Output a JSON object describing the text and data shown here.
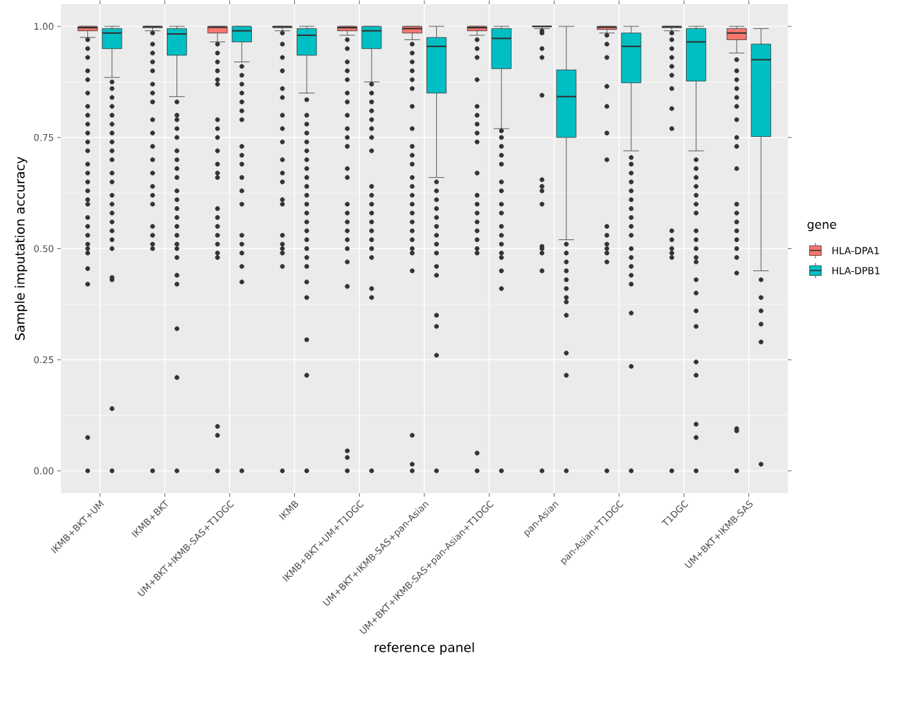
{
  "chart_data": {
    "type": "box",
    "xlabel": "reference panel",
    "ylabel": "Sample imputation accuracy",
    "legend_title": "gene",
    "categories": [
      "IKMB+BKT+UM",
      "IKMB+BKT",
      "UM+BKT+IKMB-SAS+T1DGC",
      "IKMB",
      "IKMB+BKT+UM+T1DGC",
      "UM+BKT+IKMB-SAS+pan-Asian",
      "UM+BKT+IKMB-SAS+pan-Asian+T1DGC",
      "pan-Asian",
      "pan-Asian+T1DGC",
      "T1DGC",
      "UM+BKT+IKMB-SAS"
    ],
    "ylim": [
      -0.05,
      1.05
    ],
    "yticks": [
      {
        "value": 0,
        "label": "0.00"
      },
      {
        "value": 0.25,
        "label": "0.25"
      },
      {
        "value": 0.5,
        "label": "0.50"
      },
      {
        "value": 0.75,
        "label": "0.75"
      },
      {
        "value": 1,
        "label": "1.00"
      }
    ],
    "grid": true,
    "legend": "right",
    "marker": "circle",
    "series": [
      {
        "name": "HLA-DPA1",
        "color": "#f8766d",
        "boxes": [
          {
            "low": 0.975,
            "q1": 0.99,
            "median": 0.997,
            "q3": 1.0,
            "high": 1.0,
            "outliers": [
              0.97,
              0.95,
              0.93,
              0.9,
              0.88,
              0.85,
              0.82,
              0.8,
              0.78,
              0.76,
              0.74,
              0.72,
              0.69,
              0.67,
              0.65,
              0.63,
              0.61,
              0.6,
              0.57,
              0.55,
              0.53,
              0.51,
              0.5,
              0.49,
              0.455,
              0.42,
              0.075,
              0.0
            ]
          },
          {
            "low": 0.99,
            "q1": 0.997,
            "median": 0.999,
            "q3": 1.0,
            "high": 1.0,
            "outliers": [
              0.985,
              0.96,
              0.94,
              0.92,
              0.9,
              0.87,
              0.85,
              0.83,
              0.79,
              0.76,
              0.73,
              0.7,
              0.67,
              0.64,
              0.62,
              0.6,
              0.55,
              0.53,
              0.51,
              0.5,
              0.0
            ]
          },
          {
            "low": 0.965,
            "q1": 0.985,
            "median": 0.998,
            "q3": 1.0,
            "high": 1.0,
            "outliers": [
              0.96,
              0.94,
              0.92,
              0.9,
              0.88,
              0.87,
              0.79,
              0.77,
              0.75,
              0.72,
              0.69,
              0.67,
              0.66,
              0.59,
              0.57,
              0.55,
              0.53,
              0.51,
              0.49,
              0.48,
              0.1,
              0.08,
              0.0
            ]
          },
          {
            "low": 0.99,
            "q1": 0.997,
            "median": 0.999,
            "q3": 1.0,
            "high": 1.0,
            "outliers": [
              0.985,
              0.96,
              0.93,
              0.9,
              0.86,
              0.84,
              0.8,
              0.77,
              0.74,
              0.7,
              0.67,
              0.65,
              0.61,
              0.6,
              0.53,
              0.51,
              0.5,
              0.49,
              0.46,
              0.0
            ]
          },
          {
            "low": 0.98,
            "q1": 0.99,
            "median": 0.997,
            "q3": 1.0,
            "high": 1.0,
            "outliers": [
              0.97,
              0.95,
              0.92,
              0.9,
              0.88,
              0.85,
              0.83,
              0.8,
              0.77,
              0.75,
              0.73,
              0.68,
              0.66,
              0.6,
              0.58,
              0.56,
              0.54,
              0.52,
              0.5,
              0.47,
              0.415,
              0.045,
              0.03,
              0.0
            ]
          },
          {
            "low": 0.97,
            "q1": 0.985,
            "median": 0.995,
            "q3": 1.0,
            "high": 1.0,
            "outliers": [
              0.96,
              0.94,
              0.92,
              0.9,
              0.88,
              0.86,
              0.82,
              0.77,
              0.73,
              0.71,
              0.69,
              0.66,
              0.64,
              0.62,
              0.6,
              0.58,
              0.56,
              0.54,
              0.52,
              0.5,
              0.49,
              0.45,
              0.08,
              0.015,
              0.0
            ]
          },
          {
            "low": 0.98,
            "q1": 0.99,
            "median": 0.997,
            "q3": 1.0,
            "high": 1.0,
            "outliers": [
              0.97,
              0.95,
              0.93,
              0.88,
              0.82,
              0.8,
              0.78,
              0.76,
              0.74,
              0.67,
              0.62,
              0.6,
              0.58,
              0.56,
              0.54,
              0.52,
              0.5,
              0.49,
              0.04,
              0.0
            ]
          },
          {
            "low": 0.995,
            "q1": 0.999,
            "median": 1.0,
            "q3": 1.0,
            "high": 1.0,
            "outliers": [
              0.99,
              0.985,
              0.95,
              0.93,
              0.845,
              0.655,
              0.64,
              0.63,
              0.6,
              0.505,
              0.5,
              0.49,
              0.45,
              0.0
            ]
          },
          {
            "low": 0.985,
            "q1": 0.993,
            "median": 0.998,
            "q3": 1.0,
            "high": 1.0,
            "outliers": [
              0.98,
              0.96,
              0.93,
              0.865,
              0.82,
              0.76,
              0.7,
              0.55,
              0.53,
              0.51,
              0.5,
              0.49,
              0.47,
              0.0
            ]
          },
          {
            "low": 0.99,
            "q1": 0.997,
            "median": 0.999,
            "q3": 1.0,
            "high": 1.0,
            "outliers": [
              0.985,
              0.97,
              0.95,
              0.93,
              0.91,
              0.89,
              0.86,
              0.815,
              0.77,
              0.54,
              0.52,
              0.5,
              0.49,
              0.48,
              0.0
            ]
          },
          {
            "low": 0.94,
            "q1": 0.97,
            "median": 0.985,
            "q3": 0.995,
            "high": 1.0,
            "outliers": [
              0.925,
              0.9,
              0.88,
              0.86,
              0.84,
              0.82,
              0.79,
              0.75,
              0.73,
              0.68,
              0.6,
              0.58,
              0.56,
              0.54,
              0.52,
              0.5,
              0.48,
              0.445,
              0.095,
              0.09,
              0.0
            ]
          }
        ]
      },
      {
        "name": "HLA-DPB1",
        "color": "#00bfc4",
        "boxes": [
          {
            "low": 0.885,
            "q1": 0.95,
            "median": 0.985,
            "q3": 0.995,
            "high": 1.0,
            "outliers": [
              0.875,
              0.86,
              0.84,
              0.82,
              0.8,
              0.78,
              0.76,
              0.74,
              0.72,
              0.7,
              0.67,
              0.65,
              0.62,
              0.6,
              0.58,
              0.56,
              0.54,
              0.52,
              0.5,
              0.435,
              0.43,
              0.14,
              0.0
            ]
          },
          {
            "low": 0.842,
            "q1": 0.935,
            "median": 0.983,
            "q3": 0.995,
            "high": 1.0,
            "outliers": [
              0.83,
              0.8,
              0.79,
              0.77,
              0.75,
              0.72,
              0.7,
              0.68,
              0.66,
              0.63,
              0.61,
              0.59,
              0.57,
              0.55,
              0.53,
              0.51,
              0.5,
              0.48,
              0.44,
              0.42,
              0.32,
              0.21,
              0.0
            ]
          },
          {
            "low": 0.92,
            "q1": 0.965,
            "median": 0.99,
            "q3": 1.0,
            "high": 1.0,
            "outliers": [
              0.91,
              0.89,
              0.87,
              0.85,
              0.83,
              0.81,
              0.79,
              0.73,
              0.71,
              0.69,
              0.66,
              0.63,
              0.6,
              0.53,
              0.51,
              0.49,
              0.46,
              0.425,
              0.0
            ]
          },
          {
            "low": 0.85,
            "q1": 0.935,
            "median": 0.98,
            "q3": 0.995,
            "high": 1.0,
            "outliers": [
              0.835,
              0.8,
              0.78,
              0.76,
              0.74,
              0.72,
              0.7,
              0.68,
              0.66,
              0.64,
              0.62,
              0.6,
              0.58,
              0.56,
              0.54,
              0.52,
              0.5,
              0.48,
              0.46,
              0.425,
              0.39,
              0.295,
              0.215,
              0.0
            ]
          },
          {
            "low": 0.875,
            "q1": 0.95,
            "median": 0.99,
            "q3": 1.0,
            "high": 1.0,
            "outliers": [
              0.87,
              0.85,
              0.83,
              0.81,
              0.79,
              0.77,
              0.75,
              0.72,
              0.64,
              0.62,
              0.6,
              0.58,
              0.56,
              0.54,
              0.52,
              0.5,
              0.48,
              0.41,
              0.39,
              0.0
            ]
          },
          {
            "low": 0.66,
            "q1": 0.85,
            "median": 0.955,
            "q3": 0.975,
            "high": 1.0,
            "outliers": [
              0.65,
              0.63,
              0.61,
              0.59,
              0.57,
              0.55,
              0.53,
              0.51,
              0.49,
              0.46,
              0.44,
              0.35,
              0.325,
              0.26,
              0.0
            ]
          },
          {
            "low": 0.77,
            "q1": 0.905,
            "median": 0.973,
            "q3": 0.995,
            "high": 1.0,
            "outliers": [
              0.765,
              0.75,
              0.73,
              0.71,
              0.69,
              0.65,
              0.63,
              0.6,
              0.58,
              0.55,
              0.53,
              0.51,
              0.49,
              0.48,
              0.45,
              0.41,
              0.0
            ]
          },
          {
            "low": 0.52,
            "q1": 0.75,
            "median": 0.842,
            "q3": 0.902,
            "high": 1.0,
            "outliers": [
              0.51,
              0.49,
              0.47,
              0.45,
              0.43,
              0.41,
              0.39,
              0.38,
              0.35,
              0.265,
              0.215,
              0.0
            ]
          },
          {
            "low": 0.72,
            "q1": 0.873,
            "median": 0.955,
            "q3": 0.985,
            "high": 1.0,
            "outliers": [
              0.705,
              0.69,
              0.67,
              0.65,
              0.63,
              0.61,
              0.59,
              0.57,
              0.55,
              0.53,
              0.5,
              0.48,
              0.46,
              0.44,
              0.42,
              0.355,
              0.235,
              0.0
            ]
          },
          {
            "low": 0.72,
            "q1": 0.877,
            "median": 0.965,
            "q3": 0.995,
            "high": 1.0,
            "outliers": [
              0.7,
              0.68,
              0.66,
              0.64,
              0.62,
              0.6,
              0.58,
              0.54,
              0.52,
              0.5,
              0.48,
              0.47,
              0.43,
              0.4,
              0.36,
              0.325,
              0.245,
              0.215,
              0.105,
              0.075,
              0.0
            ]
          },
          {
            "low": 0.45,
            "q1": 0.752,
            "median": 0.925,
            "q3": 0.96,
            "high": 0.995,
            "outliers": [
              0.43,
              0.39,
              0.36,
              0.33,
              0.29,
              0.015
            ]
          }
        ]
      }
    ]
  }
}
